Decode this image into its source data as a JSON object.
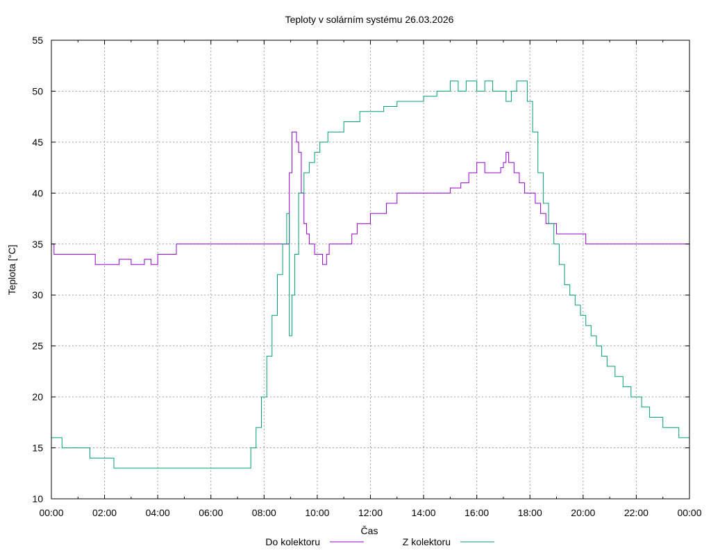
{
  "chart_data": {
    "type": "line",
    "title": "Teploty v solárním systému 26.03.2026",
    "xlabel": "Čas",
    "ylabel": "Teplota [°C]",
    "xlim": [
      0,
      24
    ],
    "ylim": [
      10,
      55
    ],
    "x_tick_labels": [
      "00:00",
      "02:00",
      "04:00",
      "06:00",
      "08:00",
      "10:00",
      "12:00",
      "14:00",
      "16:00",
      "18:00",
      "20:00",
      "22:00",
      "00:00"
    ],
    "y_ticks": [
      10,
      15,
      20,
      25,
      30,
      35,
      40,
      45,
      50,
      55
    ],
    "grid": true,
    "legend_position": "bottom",
    "series": [
      {
        "name": "Do kolektoru",
        "color": "#9400d3",
        "x": [
          0,
          0.05,
          0.1,
          1.0,
          1.6,
          1.65,
          2.5,
          2.55,
          3.0,
          3.5,
          3.75,
          4.0,
          4.4,
          4.6,
          4.7,
          5.5,
          6.5,
          7.5,
          8.3,
          8.7,
          8.95,
          9.05,
          9.15,
          9.22,
          9.3,
          9.4,
          9.5,
          9.6,
          9.7,
          9.8,
          9.9,
          10.0,
          10.1,
          10.2,
          10.35,
          10.45,
          10.6,
          10.8,
          11.0,
          11.3,
          11.5,
          11.8,
          12.0,
          12.3,
          12.6,
          12.8,
          13.0,
          13.5,
          14.0,
          14.5,
          15.0,
          15.4,
          15.7,
          16.0,
          16.3,
          16.6,
          16.9,
          17.0,
          17.1,
          17.2,
          17.4,
          17.6,
          17.8,
          18.0,
          18.2,
          18.4,
          18.6,
          18.8,
          19.0,
          19.5,
          20.0,
          20.1,
          21.0,
          22.0,
          23.0,
          24.0
        ],
        "values": [
          35,
          35,
          34,
          34,
          34,
          33,
          33,
          33.5,
          33,
          33.5,
          33,
          34,
          34,
          34,
          35,
          35,
          35,
          35,
          35,
          35,
          42,
          46,
          46,
          45,
          44,
          40,
          37,
          36,
          35,
          35,
          34,
          34,
          34,
          33,
          34,
          35,
          35,
          35,
          35,
          36,
          37,
          37,
          38,
          38,
          39,
          39,
          40,
          40,
          40,
          40,
          40.5,
          41,
          42,
          43,
          42,
          42,
          42.5,
          43,
          44,
          43,
          42,
          41,
          40,
          40,
          39,
          38,
          37,
          37,
          36,
          36,
          36,
          35,
          35,
          35,
          35,
          35
        ]
      },
      {
        "name": "Z kolektoru",
        "color": "#009e73",
        "x": [
          0,
          0.35,
          0.4,
          1.4,
          1.45,
          2.3,
          2.35,
          3.0,
          4.0,
          5.0,
          6.0,
          7.0,
          7.35,
          7.5,
          7.7,
          7.9,
          8.1,
          8.3,
          8.5,
          8.7,
          8.85,
          8.95,
          9.05,
          9.15,
          9.3,
          9.5,
          9.7,
          9.9,
          10.1,
          10.4,
          10.7,
          11.0,
          11.3,
          11.6,
          12.0,
          12.5,
          13.0,
          13.5,
          14.0,
          14.5,
          15.0,
          15.3,
          15.6,
          16.0,
          16.3,
          16.6,
          16.9,
          17.1,
          17.3,
          17.5,
          17.7,
          17.9,
          18.1,
          18.3,
          18.5,
          18.7,
          18.9,
          19.1,
          19.3,
          19.5,
          19.7,
          19.9,
          20.1,
          20.3,
          20.5,
          20.7,
          20.9,
          21.2,
          21.5,
          21.8,
          22.0,
          22.2,
          22.5,
          22.8,
          23.0,
          23.3,
          23.6,
          24.0
        ],
        "values": [
          16,
          16,
          15,
          15,
          14,
          14,
          13,
          13,
          13,
          13,
          13,
          13,
          13,
          15,
          17,
          20,
          24,
          28,
          32,
          35,
          38,
          26,
          30,
          34,
          40,
          42,
          43,
          44,
          45,
          46,
          46,
          47,
          47,
          48,
          48,
          48.5,
          49,
          49,
          49.5,
          50,
          51,
          50,
          51,
          50,
          51,
          50,
          50,
          49,
          50,
          51,
          51,
          49,
          46,
          42,
          39,
          37,
          35,
          33,
          31,
          30,
          29,
          28,
          27,
          26,
          25,
          24,
          23,
          22,
          21,
          20,
          20,
          19,
          18,
          18,
          17,
          17,
          16,
          15
        ]
      }
    ]
  }
}
